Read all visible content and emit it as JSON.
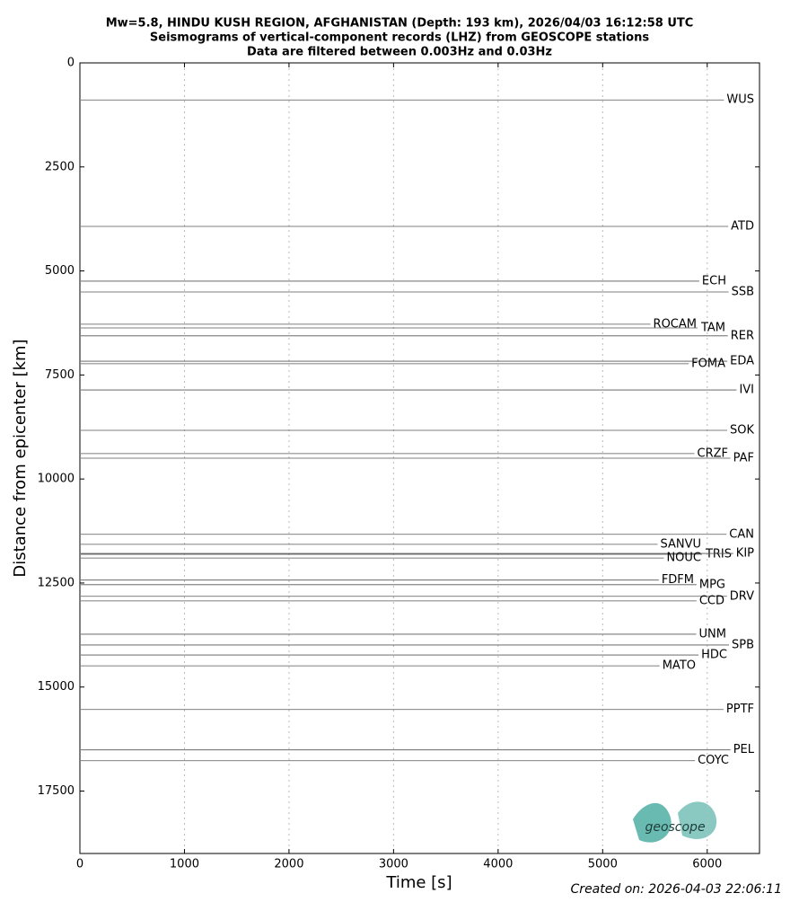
{
  "chart_data": {
    "type": "seismogram",
    "title": "Mw=5.8, HINDU KUSH REGION, AFGHANISTAN (Depth: 193 km), 2026/04/03 16:12:58 UTC",
    "subtitle": "Seismograms of vertical-component records (LHZ) from GEOSCOPE stations",
    "subtitle2": "Data are filtered between 0.003Hz and 0.03Hz",
    "x_label": "Time [s]",
    "y_label": "Distance from epicenter [km]",
    "footer": "Created on: 2026-04-03 22:06:11",
    "logo": "geoscope",
    "color": "#555555",
    "xlim": [
      0,
      6500
    ],
    "xticks": [
      0,
      1000,
      2000,
      3000,
      4000,
      5000,
      6000
    ],
    "ylim": [
      19000,
      0
    ],
    "yticks": [
      0,
      2500,
      5000,
      7500,
      10000,
      12500,
      15000,
      17500
    ],
    "grid": true,
    "categories": [
      "WUS",
      "ATD",
      "ECH",
      "SSB",
      "ROCAM",
      "TAM",
      "RER",
      "EDA",
      "FOMA",
      "IVI",
      "SOK",
      "CRZF",
      "PAF",
      "CAN",
      "SANVU",
      "TRIS",
      "KIP",
      "NOUC",
      "FDFM",
      "MPG",
      "DRV",
      "CCD",
      "UNM",
      "SPB",
      "HDC",
      "MATO",
      "PPTF",
      "PEL",
      "COYC"
    ],
    "values": [
      890,
      3930,
      5245,
      5505,
      6280,
      6370,
      6560,
      7170,
      7230,
      7860,
      8830,
      9390,
      9500,
      11330,
      11570,
      11810,
      11790,
      11900,
      12430,
      12540,
      12820,
      12930,
      13730,
      13990,
      14230,
      14490,
      15540,
      16510,
      16770
    ]
  }
}
